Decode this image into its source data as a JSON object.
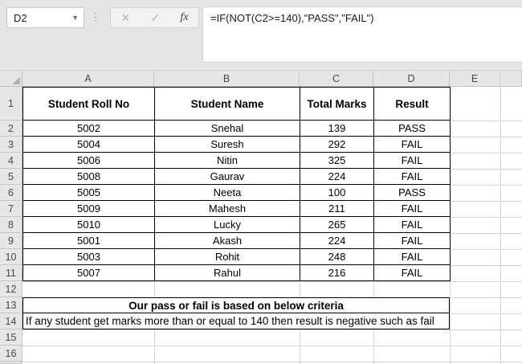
{
  "colors": {
    "chrome_bg": "#e5e5e5",
    "header_bg": "#e6e6e6",
    "gridline": "#d4d4d4",
    "table_border": "#000000"
  },
  "formula_bar": {
    "cell_reference": "D2",
    "formula": "=IF(NOT(C2>=140),\"PASS\",\"FAIL\")",
    "cancel_icon": "✕",
    "enter_icon": "✓",
    "fx_label": "fx",
    "dropdown_icon": "▼",
    "dots_icon": "⋮"
  },
  "grid": {
    "column_letters": [
      "A",
      "B",
      "C",
      "D",
      "E"
    ],
    "row_numbers": [
      "1",
      "2",
      "3",
      "4",
      "5",
      "6",
      "7",
      "8",
      "9",
      "10",
      "11",
      "12",
      "13",
      "14",
      "15",
      "16"
    ]
  },
  "table": {
    "headers": [
      "Student Roll No",
      "Student Name",
      "Total Marks",
      "Result"
    ],
    "rows": [
      [
        "5002",
        "Snehal",
        "139",
        "PASS"
      ],
      [
        "5004",
        "Suresh",
        "292",
        "FAIL"
      ],
      [
        "5006",
        "Nitin",
        "325",
        "FAIL"
      ],
      [
        "5008",
        "Gaurav",
        "224",
        "FAIL"
      ],
      [
        "5005",
        "Neeta",
        "100",
        "PASS"
      ],
      [
        "5009",
        "Mahesh",
        "211",
        "FAIL"
      ],
      [
        "5010",
        "Lucky",
        "265",
        "FAIL"
      ],
      [
        "5001",
        "Akash",
        "224",
        "FAIL"
      ],
      [
        "5003",
        "Rohit",
        "248",
        "FAIL"
      ],
      [
        "5007",
        "Rahul",
        "216",
        "FAIL"
      ]
    ]
  },
  "criteria": {
    "title": "Our pass or fail is based on below criteria",
    "description": "If any student get marks more than or equal to 140 then result is negative such as fail"
  }
}
